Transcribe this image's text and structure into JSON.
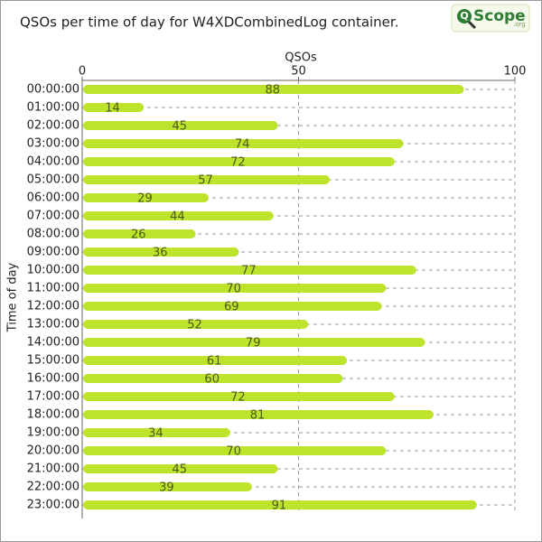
{
  "chart_data": {
    "type": "barh",
    "title": "QSOs per time of day for W4XDCombinedLog container.",
    "logo": {
      "letter": "Q",
      "text": "Scope",
      "suffix": ".org"
    },
    "xlabel": "QSOs",
    "ylabel": "Time of day",
    "categories": [
      "00:00:00",
      "01:00:00",
      "02:00:00",
      "03:00:00",
      "04:00:00",
      "05:00:00",
      "06:00:00",
      "07:00:00",
      "08:00:00",
      "09:00:00",
      "10:00:00",
      "11:00:00",
      "12:00:00",
      "13:00:00",
      "14:00:00",
      "15:00:00",
      "16:00:00",
      "17:00:00",
      "18:00:00",
      "19:00:00",
      "20:00:00",
      "21:00:00",
      "22:00:00",
      "23:00:00"
    ],
    "values": [
      88,
      14,
      45,
      74,
      72,
      57,
      29,
      44,
      26,
      36,
      77,
      70,
      69,
      52,
      79,
      61,
      60,
      72,
      81,
      34,
      70,
      45,
      39,
      91
    ],
    "color": "#bee32c",
    "xlim": [
      0,
      100
    ],
    "xticks": [
      0,
      50,
      100
    ],
    "grid": true
  }
}
